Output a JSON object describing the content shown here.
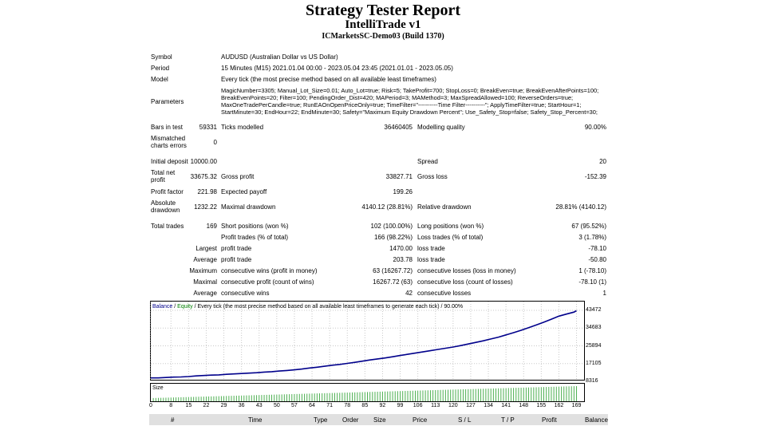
{
  "header": {
    "title": "Strategy Tester Report",
    "expert": "IntelliTrade v1",
    "server": "ICMarketsSC-Demo03 (Build 1370)"
  },
  "settings": {
    "symbol_label": "Symbol",
    "symbol_value": "AUDUSD (Australian Dollar vs US Dollar)",
    "period_label": "Period",
    "period_value": "15 Minutes (M15) 2021.01.04 00:00 - 2023.05.04 23:45 (2021.01.01 - 2023.05.05)",
    "model_label": "Model",
    "model_value": "Every tick (the most precise method based on all available least timeframes)",
    "parameters_label": "Parameters",
    "parameters_lines": [
      "MagicNumber=3305; Manual_Lot_Size=0.01; Auto_Lot=true; Risk=5; TakeProfit=700; StopLoss=0; BreakEven=true; BreakEvenAfterPoints=100;",
      "BreakEvenPoints=20; Filter=100; PendingOrder_Dist=420; MAPeriod=3; MAMethod=3; MaxSpreadAllowed=100; ReverseOrders=true;",
      "MaxOneTradePerCandle=true; RunEAOnOpenPriceOnly=true; TimeFilter=\"----------Time Filter----------\"; ApplyTimeFilter=true; StartHour=1;",
      "StartMinute=30; EndHour=22; EndMinute=30; Safety=\"Maximum Equity Drawdown Percent\"; Use_Safety_Stop=false; Safety_Stop_Percent=30;"
    ]
  },
  "stats": {
    "bars_label": "Bars in test",
    "bars_value": "59331",
    "ticks_label": "Ticks modelled",
    "ticks_value": "36460405",
    "quality_label": "Modelling quality",
    "quality_value": "90.00%",
    "mismatch_label_1": "Mismatched",
    "mismatch_label_2": "charts errors",
    "mismatch_value": "0",
    "deposit_label": "Initial deposit",
    "deposit_value": "10000.00",
    "spread_label": "Spread",
    "spread_value": "20",
    "netprofit_label_1": "Total net",
    "netprofit_label_2": "profit",
    "netprofit_value": "33675.32",
    "grossprofit_label": "Gross profit",
    "grossprofit_value": "33827.71",
    "grossloss_label": "Gross loss",
    "grossloss_value": "-152.39",
    "pf_label": "Profit factor",
    "pf_value": "221.98",
    "payoff_label": "Expected payoff",
    "payoff_value": "199.26",
    "absdd_label_1": "Absolute",
    "absdd_label_2": "drawdown",
    "absdd_value": "1232.22",
    "maxdd_label": "Maximal drawdown",
    "maxdd_value": "4140.12 (28.81%)",
    "reldd_label": "Relative drawdown",
    "reldd_value": "28.81% (4140.12)",
    "trades_label": "Total trades",
    "trades_value": "169",
    "short_label": "Short positions (won %)",
    "short_value": "102 (100.00%)",
    "long_label": "Long positions (won %)",
    "long_value": "67 (95.52%)",
    "pt_label": "Profit trades (% of total)",
    "pt_value": "166 (98.22%)",
    "lt_label": "Loss trades (% of total)",
    "lt_value": "3 (1.78%)",
    "largest_label": "Largest",
    "lpt_label": "profit trade",
    "lpt_value": "1470.00",
    "llt_label": "loss trade",
    "llt_value": "-78.10",
    "average_label": "Average",
    "apt_label": "profit trade",
    "apt_value": "203.78",
    "alt_label": "loss trade",
    "alt_value": "-50.80",
    "maximum_label": "Maximum",
    "mcw_label": "consecutive wins (profit in money)",
    "mcw_value": "63 (16267.72)",
    "mcl_label": "consecutive losses (loss in money)",
    "mcl_value": "1 (-78.10)",
    "maximal_label": "Maximal",
    "mcp_label": "consecutive profit (count of wins)",
    "mcp_value": "16267.72 (63)",
    "mcll_label": "consecutive loss (count of losses)",
    "mcll_value": "-78.10 (1)",
    "average2_label": "Average",
    "acw_label": "consecutive wins",
    "acw_value": "42",
    "acl_label": "consecutive losses",
    "acl_value": "1"
  },
  "chart_data": {
    "type": "line",
    "legend_balance": "Balance",
    "legend_sep": "/",
    "legend_equity": "Equity",
    "legend_rest": "/ Every tick (the most precise method based on all available least timeframes to generate each tick) / 90.00%",
    "size_label": "Size",
    "y_ticks": [
      "43472",
      "34683",
      "25894",
      "17105",
      "8316"
    ],
    "x_ticks": [
      "0",
      "8",
      "15",
      "22",
      "29",
      "36",
      "43",
      "50",
      "57",
      "64",
      "71",
      "78",
      "85",
      "92",
      "99",
      "106",
      "113",
      "120",
      "127",
      "134",
      "141",
      "148",
      "155",
      "162",
      "169"
    ],
    "ylim": [
      8316,
      43472
    ],
    "xlim": [
      0,
      172
    ],
    "series": [
      {
        "name": "Balance",
        "color": "#00008b",
        "x": [
          0,
          3,
          6,
          9,
          12,
          15,
          18,
          21,
          24,
          27,
          30,
          33,
          36,
          39,
          42,
          45,
          48,
          51,
          54,
          57,
          60,
          63,
          66,
          69,
          72,
          75,
          78,
          81,
          84,
          87,
          90,
          93,
          96,
          99,
          102,
          105,
          108,
          111,
          114,
          117,
          120,
          123,
          126,
          129,
          132,
          135,
          138,
          141,
          144,
          147,
          150,
          153,
          156,
          159,
          162,
          165,
          168,
          169
        ],
        "values": [
          10000,
          10000,
          10200,
          10400,
          10500,
          10700,
          11000,
          11200,
          11400,
          11500,
          11800,
          12000,
          12200,
          12400,
          12600,
          12900,
          13100,
          13400,
          13700,
          14000,
          14400,
          14900,
          15300,
          15800,
          16300,
          16700,
          17200,
          17700,
          18300,
          18900,
          19400,
          19900,
          20500,
          21100,
          21700,
          22300,
          22900,
          23500,
          24100,
          24700,
          25300,
          26000,
          26800,
          27600,
          28400,
          29300,
          30200,
          31300,
          32400,
          33600,
          34900,
          36200,
          37600,
          39100,
          40600,
          41600,
          42600,
          43300
        ]
      }
    ],
    "lot_sizes_note": ""
  },
  "colors": {
    "balance": "#00008b",
    "equity": "#008000",
    "size_bars": "#4caf50"
  },
  "table": {
    "columns": [
      "#",
      "Time",
      "Type",
      "Order",
      "Size",
      "Price",
      "S / L",
      "T / P",
      "Profit",
      "Balance"
    ]
  }
}
